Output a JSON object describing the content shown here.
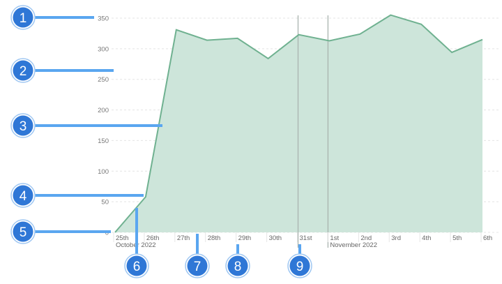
{
  "chart_data": {
    "type": "area",
    "x": [
      "25th",
      "26th",
      "27th",
      "28th",
      "29th",
      "30th",
      "31st",
      "1st",
      "2nd",
      "3rd",
      "4th",
      "5th",
      "6th"
    ],
    "month_labels": [
      {
        "at": "25th",
        "label": "October 2022"
      },
      {
        "at": "1st",
        "label": "November 2022"
      }
    ],
    "series": [
      {
        "values": [
          0,
          58,
          331,
          314,
          317,
          284,
          323,
          313,
          324,
          355,
          340,
          294,
          315
        ]
      }
    ],
    "yticks": [
      0,
      50,
      100,
      150,
      200,
      250,
      300,
      350
    ],
    "ylim": [
      0,
      350
    ],
    "vertical_markers": [
      "31st",
      "1st"
    ],
    "grid": "horizontal dashed",
    "colors": {
      "fill": "#cde5da",
      "line": "#6fb190",
      "marker": "#a9b3ae",
      "callout": "#5aa6f0",
      "badge": "#2f77d6"
    }
  },
  "annotations": [
    "1",
    "2",
    "3",
    "4",
    "5",
    "6",
    "7",
    "8",
    "9"
  ]
}
